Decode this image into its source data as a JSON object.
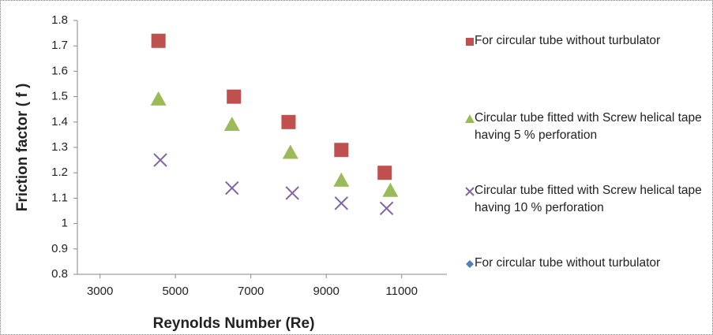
{
  "chart_data": {
    "type": "scatter",
    "x_label": "Reynolds Number (Re)",
    "y_label": "Friction factor ( f )",
    "xlim": [
      2400,
      12200
    ],
    "xticks": [
      3000,
      5000,
      7000,
      9000,
      11000
    ],
    "ylim": [
      0.8,
      1.8
    ],
    "yticks": [
      0.8,
      0.9,
      1,
      1.1,
      1.2,
      1.3,
      1.4,
      1.5,
      1.6,
      1.7,
      1.8
    ],
    "series": [
      {
        "name": "For circular tube without turbulator",
        "color": "#c0504d",
        "marker": "square",
        "x": [
          4550,
          6550,
          8000,
          9400,
          10550
        ],
        "values": [
          1.72,
          1.5,
          1.4,
          1.29,
          1.2
        ]
      },
      {
        "name": "Circular tube fitted with  Screw helical tape  having 5 % perforation",
        "color": "#9bbb59",
        "marker": "triangle",
        "x": [
          4550,
          6500,
          8050,
          9400,
          10700
        ],
        "values": [
          1.49,
          1.39,
          1.28,
          1.17,
          1.13
        ]
      },
      {
        "name": "Circular tube fitted with  Screw helical tape  having 10 % perforation",
        "color": "#8064a2",
        "marker": "cross",
        "x": [
          4600,
          6500,
          8100,
          9400,
          10600
        ],
        "values": [
          1.25,
          1.14,
          1.12,
          1.08,
          1.06
        ]
      },
      {
        "name": "For circular tube without turbulator",
        "color": "#4f81bd",
        "marker": "diamond",
        "x": [],
        "values": []
      }
    ]
  }
}
